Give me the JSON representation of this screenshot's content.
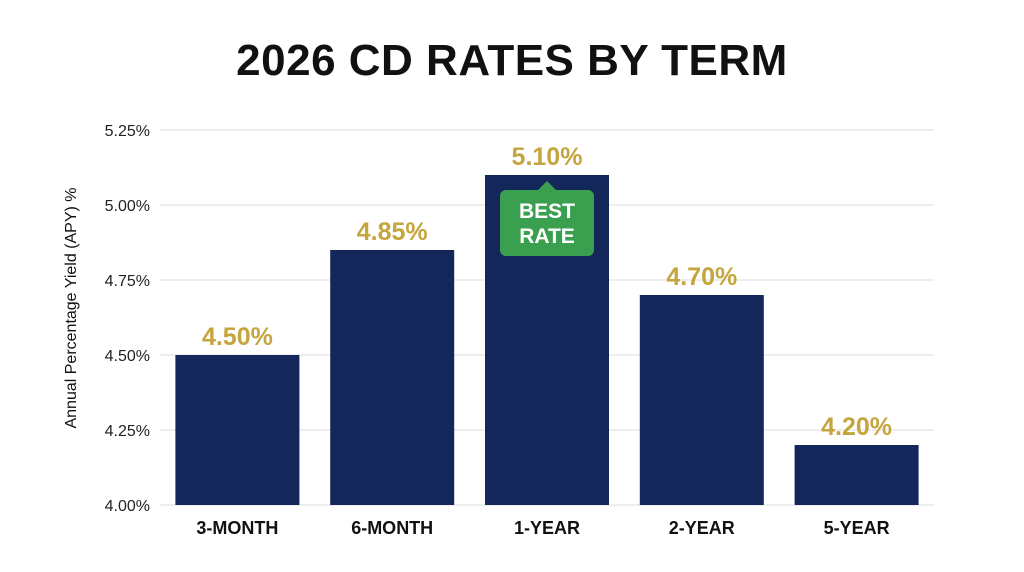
{
  "chart_data": {
    "type": "bar",
    "title": "2026 CD RATES BY TERM",
    "ylabel": "Annual Percentage Yield (APY) %",
    "xlabel": "",
    "categories": [
      "3-MONTH",
      "6-MONTH",
      "1-YEAR",
      "2-YEAR",
      "5-YEAR"
    ],
    "values": [
      4.5,
      4.85,
      5.1,
      4.7,
      4.2
    ],
    "value_labels": [
      "4.50%",
      "4.85%",
      "5.10%",
      "4.70%",
      "4.20%"
    ],
    "ylim": [
      4.0,
      5.25
    ],
    "yticks": [
      4.0,
      4.25,
      4.5,
      4.75,
      5.0,
      5.25
    ],
    "ytick_labels": [
      "4.00%",
      "4.25%",
      "4.50%",
      "4.75%",
      "5.00%",
      "5.25%"
    ],
    "grid": true,
    "annotation": {
      "category": "1-YEAR",
      "lines": [
        "BEST",
        "RATE"
      ]
    },
    "colors": {
      "bar": "#13275a",
      "value_label": "#c4a53e",
      "badge": "#3aa04f",
      "grid": "#dddddd"
    }
  }
}
